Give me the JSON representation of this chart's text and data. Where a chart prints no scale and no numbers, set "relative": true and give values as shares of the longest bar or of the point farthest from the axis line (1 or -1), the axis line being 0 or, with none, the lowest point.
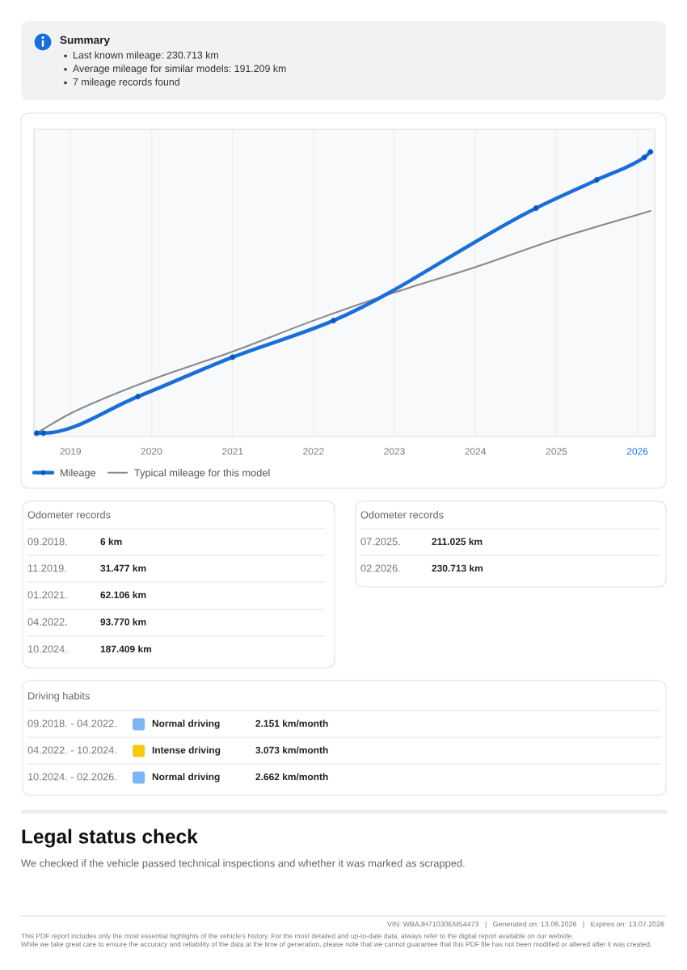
{
  "chart_data": {
    "type": "line",
    "relative": true,
    "x": [
      "2018-08",
      "2018-09",
      "2019-11",
      "2021-01",
      "2022-04",
      "2024-10",
      "2025-07",
      "2026-02",
      "2026-03"
    ],
    "series": [
      {
        "name": "Mileage",
        "color": "#1a6fd6",
        "marker": "circle",
        "values": [
          0,
          0,
          0.13,
          0.27,
          0.4,
          0.8,
          0.9,
          0.98,
          1
        ]
      },
      {
        "name": "Typical mileage for this model",
        "color": "#8a8a8a",
        "marker": "none",
        "x": [
          "2018-08",
          "2019",
          "2020",
          "2021",
          "2022",
          "2023",
          "2024",
          "2025",
          "2026-03"
        ],
        "values": [
          0,
          0.07,
          0.19,
          0.29,
          0.4,
          0.5,
          0.59,
          0.69,
          0.79
        ]
      }
    ],
    "xlim": [
      "2018-07-20",
      "2026-03-20"
    ],
    "xticks": [
      {
        "value": "2019",
        "label": "2019"
      },
      {
        "value": "2020",
        "label": "2020"
      },
      {
        "value": "2021",
        "label": "2021"
      },
      {
        "value": "2022",
        "label": "2022"
      },
      {
        "value": "2023",
        "label": "2023"
      },
      {
        "value": "2024",
        "label": "2024"
      },
      {
        "value": "2025",
        "label": "2025"
      },
      {
        "value": "2026",
        "label": "2026"
      }
    ],
    "grid": "x",
    "legend": "bottom",
    "line_style": "solid",
    "annotations": [
      "Summary",
      "Last known mileage: 230.713 km",
      "Average mileage for similar models: 191.209 km",
      "7 mileage records found",
      "Odometer records",
      "09.2018.",
      "6 km",
      "11.2019.",
      "31.477 km",
      "01.2021.",
      "62.106 km",
      "04.2022.",
      "93.770 km",
      "10.2024.",
      "187.409 km",
      "Odometer records",
      "07.2025.",
      "211.025 km",
      "02.2026.",
      "230.713 km",
      "Driving habits",
      "09.2018. - 04.2022.",
      "Normal driving",
      "2.151 km/month",
      "04.2022. - 10.2024.",
      "Intense driving",
      "3.073 km/month",
      "10.2024. - 02.2026.",
      "Normal driving",
      "2.662 km/month",
      "Legal status check",
      "We checked if the vehicle passed technical inspections and whether it was marked as scrapped.",
      "VIN: WBAJH71030EM54473   |   Generated on: 13.06.2026   |   Expires on: 13.07.2026",
      "This PDF report includes only the most essential highlights of the vehicle's history. For the most detailed and up-to-date data, always refer to the digital report available on our website.",
      "While we take great care to ensure the accuracy and reliability of the data at the time of generation, please note that we cannot guarantee that this PDF file has not been modified or altered after it was created."
    ]
  }
}
